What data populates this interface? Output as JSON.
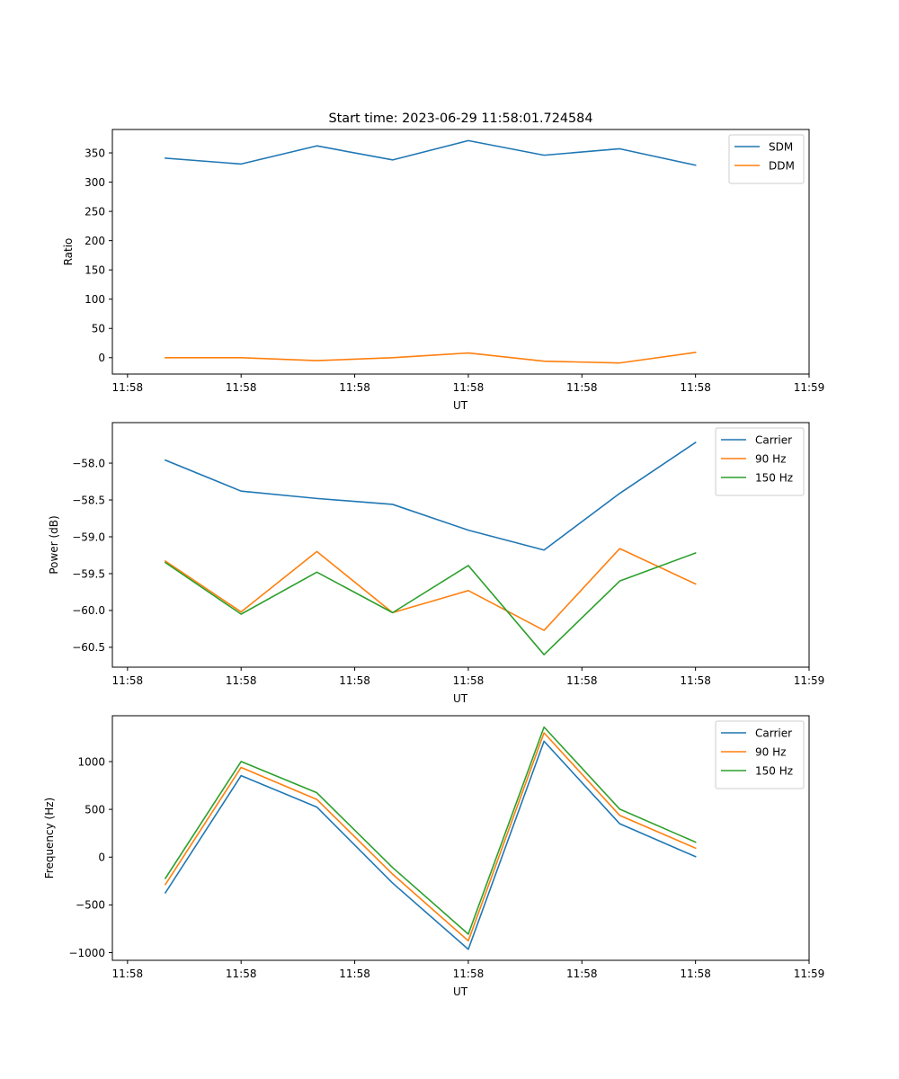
{
  "figure": {
    "title": "Start time: 2023-06-29 11:58:01.724584"
  },
  "chart_data": [
    {
      "type": "line",
      "title": "Start time: 2023-06-29 11:58:01.724584",
      "xlabel": "UT",
      "ylabel": "Ratio",
      "x_ticks": [
        "11:58",
        "11:58",
        "11:58",
        "11:58",
        "11:58",
        "11:58",
        "11:59"
      ],
      "xlim": [
        -0.2,
        9
      ],
      "x": [
        0.5,
        1.5,
        2.5,
        3.5,
        4.5,
        5.5,
        6.5,
        7.5
      ],
      "ylim": [
        -28,
        390
      ],
      "y_ticks": [
        0,
        50,
        100,
        150,
        200,
        250,
        300,
        350
      ],
      "legend_position": "top-right",
      "series": [
        {
          "name": "SDM",
          "color": "#1f77b4",
          "values": [
            341,
            331,
            362,
            338,
            371,
            346,
            357,
            329
          ]
        },
        {
          "name": "DDM",
          "color": "#ff7f0e",
          "values": [
            0,
            0,
            -5,
            0,
            8,
            -6,
            -9,
            9
          ]
        }
      ]
    },
    {
      "type": "line",
      "xlabel": "UT",
      "ylabel": "Power (dB)",
      "x_ticks": [
        "11:58",
        "11:58",
        "11:58",
        "11:58",
        "11:58",
        "11:58",
        "11:59"
      ],
      "xlim": [
        -0.2,
        9
      ],
      "x": [
        0.5,
        1.5,
        2.5,
        3.5,
        4.5,
        5.5,
        6.5,
        7.5
      ],
      "ylim": [
        -60.77,
        -57.45
      ],
      "y_ticks": [
        -58.0,
        -58.5,
        -59.0,
        -59.5,
        -60.0,
        -60.5
      ],
      "legend_position": "top-right",
      "series": [
        {
          "name": "Carrier",
          "color": "#1f77b4",
          "values": [
            -57.96,
            -58.38,
            -58.48,
            -58.56,
            -58.91,
            -59.18,
            -58.41,
            -57.72
          ]
        },
        {
          "name": "90 Hz",
          "color": "#ff7f0e",
          "values": [
            -59.33,
            -60.02,
            -59.2,
            -60.03,
            -59.73,
            -60.27,
            -59.16,
            -59.64
          ]
        },
        {
          "name": "150 Hz",
          "color": "#2ca02c",
          "values": [
            -59.35,
            -60.05,
            -59.48,
            -60.03,
            -59.39,
            -60.6,
            -59.6,
            -59.22
          ]
        }
      ]
    },
    {
      "type": "line",
      "xlabel": "UT",
      "ylabel": "Frequency (Hz)",
      "x_ticks": [
        "11:58",
        "11:58",
        "11:58",
        "11:58",
        "11:58",
        "11:58",
        "11:59"
      ],
      "xlim": [
        -0.2,
        9
      ],
      "x": [
        0.5,
        1.5,
        2.5,
        3.5,
        4.5,
        5.5,
        6.5,
        7.5
      ],
      "ylim": [
        -1080,
        1480
      ],
      "y_ticks": [
        1000,
        500,
        0,
        -500,
        -1000
      ],
      "legend_position": "top-right",
      "series": [
        {
          "name": "Carrier",
          "color": "#1f77b4",
          "values": [
            -373,
            853,
            524,
            -271,
            -965,
            1213,
            349,
            5
          ]
        },
        {
          "name": "90 Hz",
          "color": "#ff7f0e",
          "values": [
            -286,
            939,
            604,
            -178,
            -876,
            1301,
            436,
            94
          ]
        },
        {
          "name": "150 Hz",
          "color": "#2ca02c",
          "values": [
            -222,
            1001,
            674,
            -109,
            -806,
            1361,
            502,
            157
          ]
        }
      ]
    }
  ]
}
